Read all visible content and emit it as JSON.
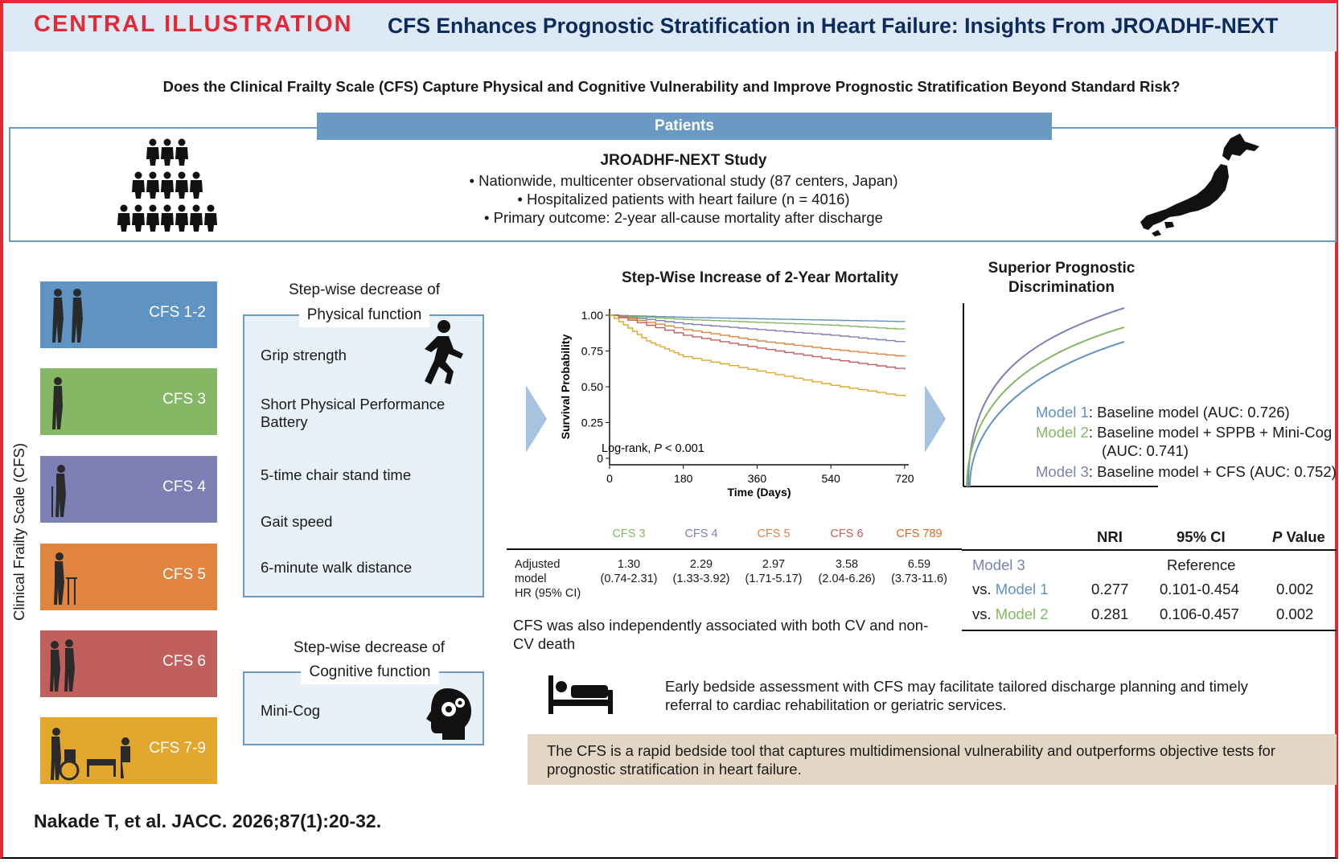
{
  "header": {
    "label": "CENTRAL ILLUSTRATION",
    "title": "CFS Enhances Prognostic Stratification in Heart Failure: Insights From JROADHF-NEXT"
  },
  "question": "Does the Clinical Frailty Scale (CFS) Capture Physical and Cognitive Vulnerability and Improve Prognostic Stratification Beyond Standard Risk?",
  "patients": {
    "bar_label": "Patients",
    "study_title": "JROADHF-NEXT Study",
    "bullets": [
      "• Nationwide, multicenter observational study (87 centers, Japan)",
      "• Hospitalized patients with heart failure (n = 4016)",
      "• Primary outcome: 2-year all-cause mortality after discharge"
    ]
  },
  "cfs_axis_label": "Clinical Frailty Scale (CFS)",
  "cfs_tiles": [
    {
      "label": "CFS 1-2",
      "color": "#5f93c2"
    },
    {
      "label": "CFS 3",
      "color": "#84b865"
    },
    {
      "label": "CFS 4",
      "color": "#7c80b4"
    },
    {
      "label": "CFS 5",
      "color": "#e0843f"
    },
    {
      "label": "CFS 6",
      "color": "#c05f5c"
    },
    {
      "label": "CFS 7-9",
      "color": "#e4a72d"
    }
  ],
  "physical": {
    "heading_line1": "Step-wise decrease of",
    "heading_line2": "Physical function",
    "items": [
      "Grip strength",
      "Short Physical Performance Battery",
      "5-time chair stand time",
      "Gait speed",
      "6-minute walk distance"
    ]
  },
  "cognitive": {
    "heading_line1": "Step-wise decrease of",
    "heading_line2": "Cognitive function",
    "items": [
      "Mini-Cog"
    ]
  },
  "chart_data": {
    "type": "line",
    "title": "Step-Wise Increase of 2-Year Mortality",
    "xlabel": "Time (Days)",
    "ylabel": "Survival Probability",
    "x_ticks": [
      0,
      180,
      360,
      540,
      720
    ],
    "y_ticks": [
      "0",
      "0.25",
      "0.50",
      "0.75",
      "1.00"
    ],
    "xlim": [
      0,
      730
    ],
    "ylim": [
      0,
      1
    ],
    "annotation_prefix": "Log-rank, ",
    "annotation_p": "P",
    "annotation_suffix": " < 0.001",
    "series": [
      {
        "color": "#5f93c2",
        "x": [
          0,
          180,
          360,
          540,
          720
        ],
        "y": [
          1.0,
          0.985,
          0.975,
          0.965,
          0.955
        ]
      },
      {
        "color": "#84b865",
        "x": [
          0,
          180,
          360,
          540,
          720
        ],
        "y": [
          1.0,
          0.97,
          0.95,
          0.93,
          0.9
        ]
      },
      {
        "color": "#7c80b4",
        "x": [
          0,
          180,
          360,
          540,
          720
        ],
        "y": [
          1.0,
          0.94,
          0.9,
          0.86,
          0.81
        ]
      },
      {
        "color": "#e0843f",
        "x": [
          0,
          180,
          360,
          540,
          720
        ],
        "y": [
          1.0,
          0.9,
          0.82,
          0.76,
          0.71
        ]
      },
      {
        "color": "#c05f5c",
        "x": [
          0,
          180,
          360,
          540,
          720
        ],
        "y": [
          1.0,
          0.86,
          0.77,
          0.69,
          0.62
        ]
      },
      {
        "color": "#e4a72d",
        "x": [
          0,
          90,
          180,
          360,
          540,
          720
        ],
        "y": [
          1.0,
          0.82,
          0.71,
          0.61,
          0.51,
          0.43
        ]
      }
    ]
  },
  "hr_table": {
    "row_label": [
      "Adjusted",
      "model",
      "HR (95% CI)"
    ],
    "columns": [
      {
        "header": "CFS 3",
        "color": "#84b865",
        "hr": "1.30",
        "ci": "(0.74-2.31)"
      },
      {
        "header": "CFS 4",
        "color": "#7c80b4",
        "hr": "2.29",
        "ci": "(1.33-3.92)"
      },
      {
        "header": "CFS 5",
        "color": "#e0843f",
        "hr": "2.97",
        "ci": "(1.71-5.17)"
      },
      {
        "header": "CFS 6",
        "color": "#c05f5c",
        "hr": "3.58",
        "ci": "(2.04-6.26)"
      },
      {
        "header": "CFS 789",
        "color": "#d96a22",
        "hr": "6.59",
        "ci": "(3.73-11.6)"
      }
    ]
  },
  "cv_note": "CFS was also independently associated with both CV and non-CV death",
  "discrimination": {
    "title_line1": "Superior Prognostic",
    "title_line2": "Discrimination",
    "models": [
      {
        "name": "Model 1",
        "desc": ": Baseline model (AUC: 0.726)",
        "color": "#5f93c2"
      },
      {
        "name": "Model 2",
        "desc": ": Baseline model + SPPB + Mini-Cog",
        "desc2": "(AUC: 0.741)",
        "color": "#84b865"
      },
      {
        "name": "Model 3",
        "desc": ": Baseline model + CFS (AUC: 0.752)",
        "color": "#7c80b4"
      }
    ]
  },
  "nri_table": {
    "headers": [
      "NRI",
      "95% CI",
      "P",
      " Value"
    ],
    "reference_model": "Model 3",
    "reference_text": "Reference",
    "rows": [
      {
        "prefix": "vs. ",
        "model": "Model 1",
        "color": "#5f93c2",
        "nri": "0.277",
        "ci": "0.101-0.454",
        "p": "0.002"
      },
      {
        "prefix": "vs. ",
        "model": "Model 2",
        "color": "#84b865",
        "nri": "0.281",
        "ci": "0.106-0.457",
        "p": "0.002"
      }
    ]
  },
  "bedside_note": "Early bedside assessment with CFS may facilitate tailored discharge planning and timely referral to cardiac rehabilitation or geriatric services.",
  "summary": "The CFS is a rapid bedside tool that captures multidimensional vulnerability and outperforms objective tests for prognostic stratification in heart failure.",
  "citation": "Nakade T, et al. JACC. 2026;87(1):20-32."
}
